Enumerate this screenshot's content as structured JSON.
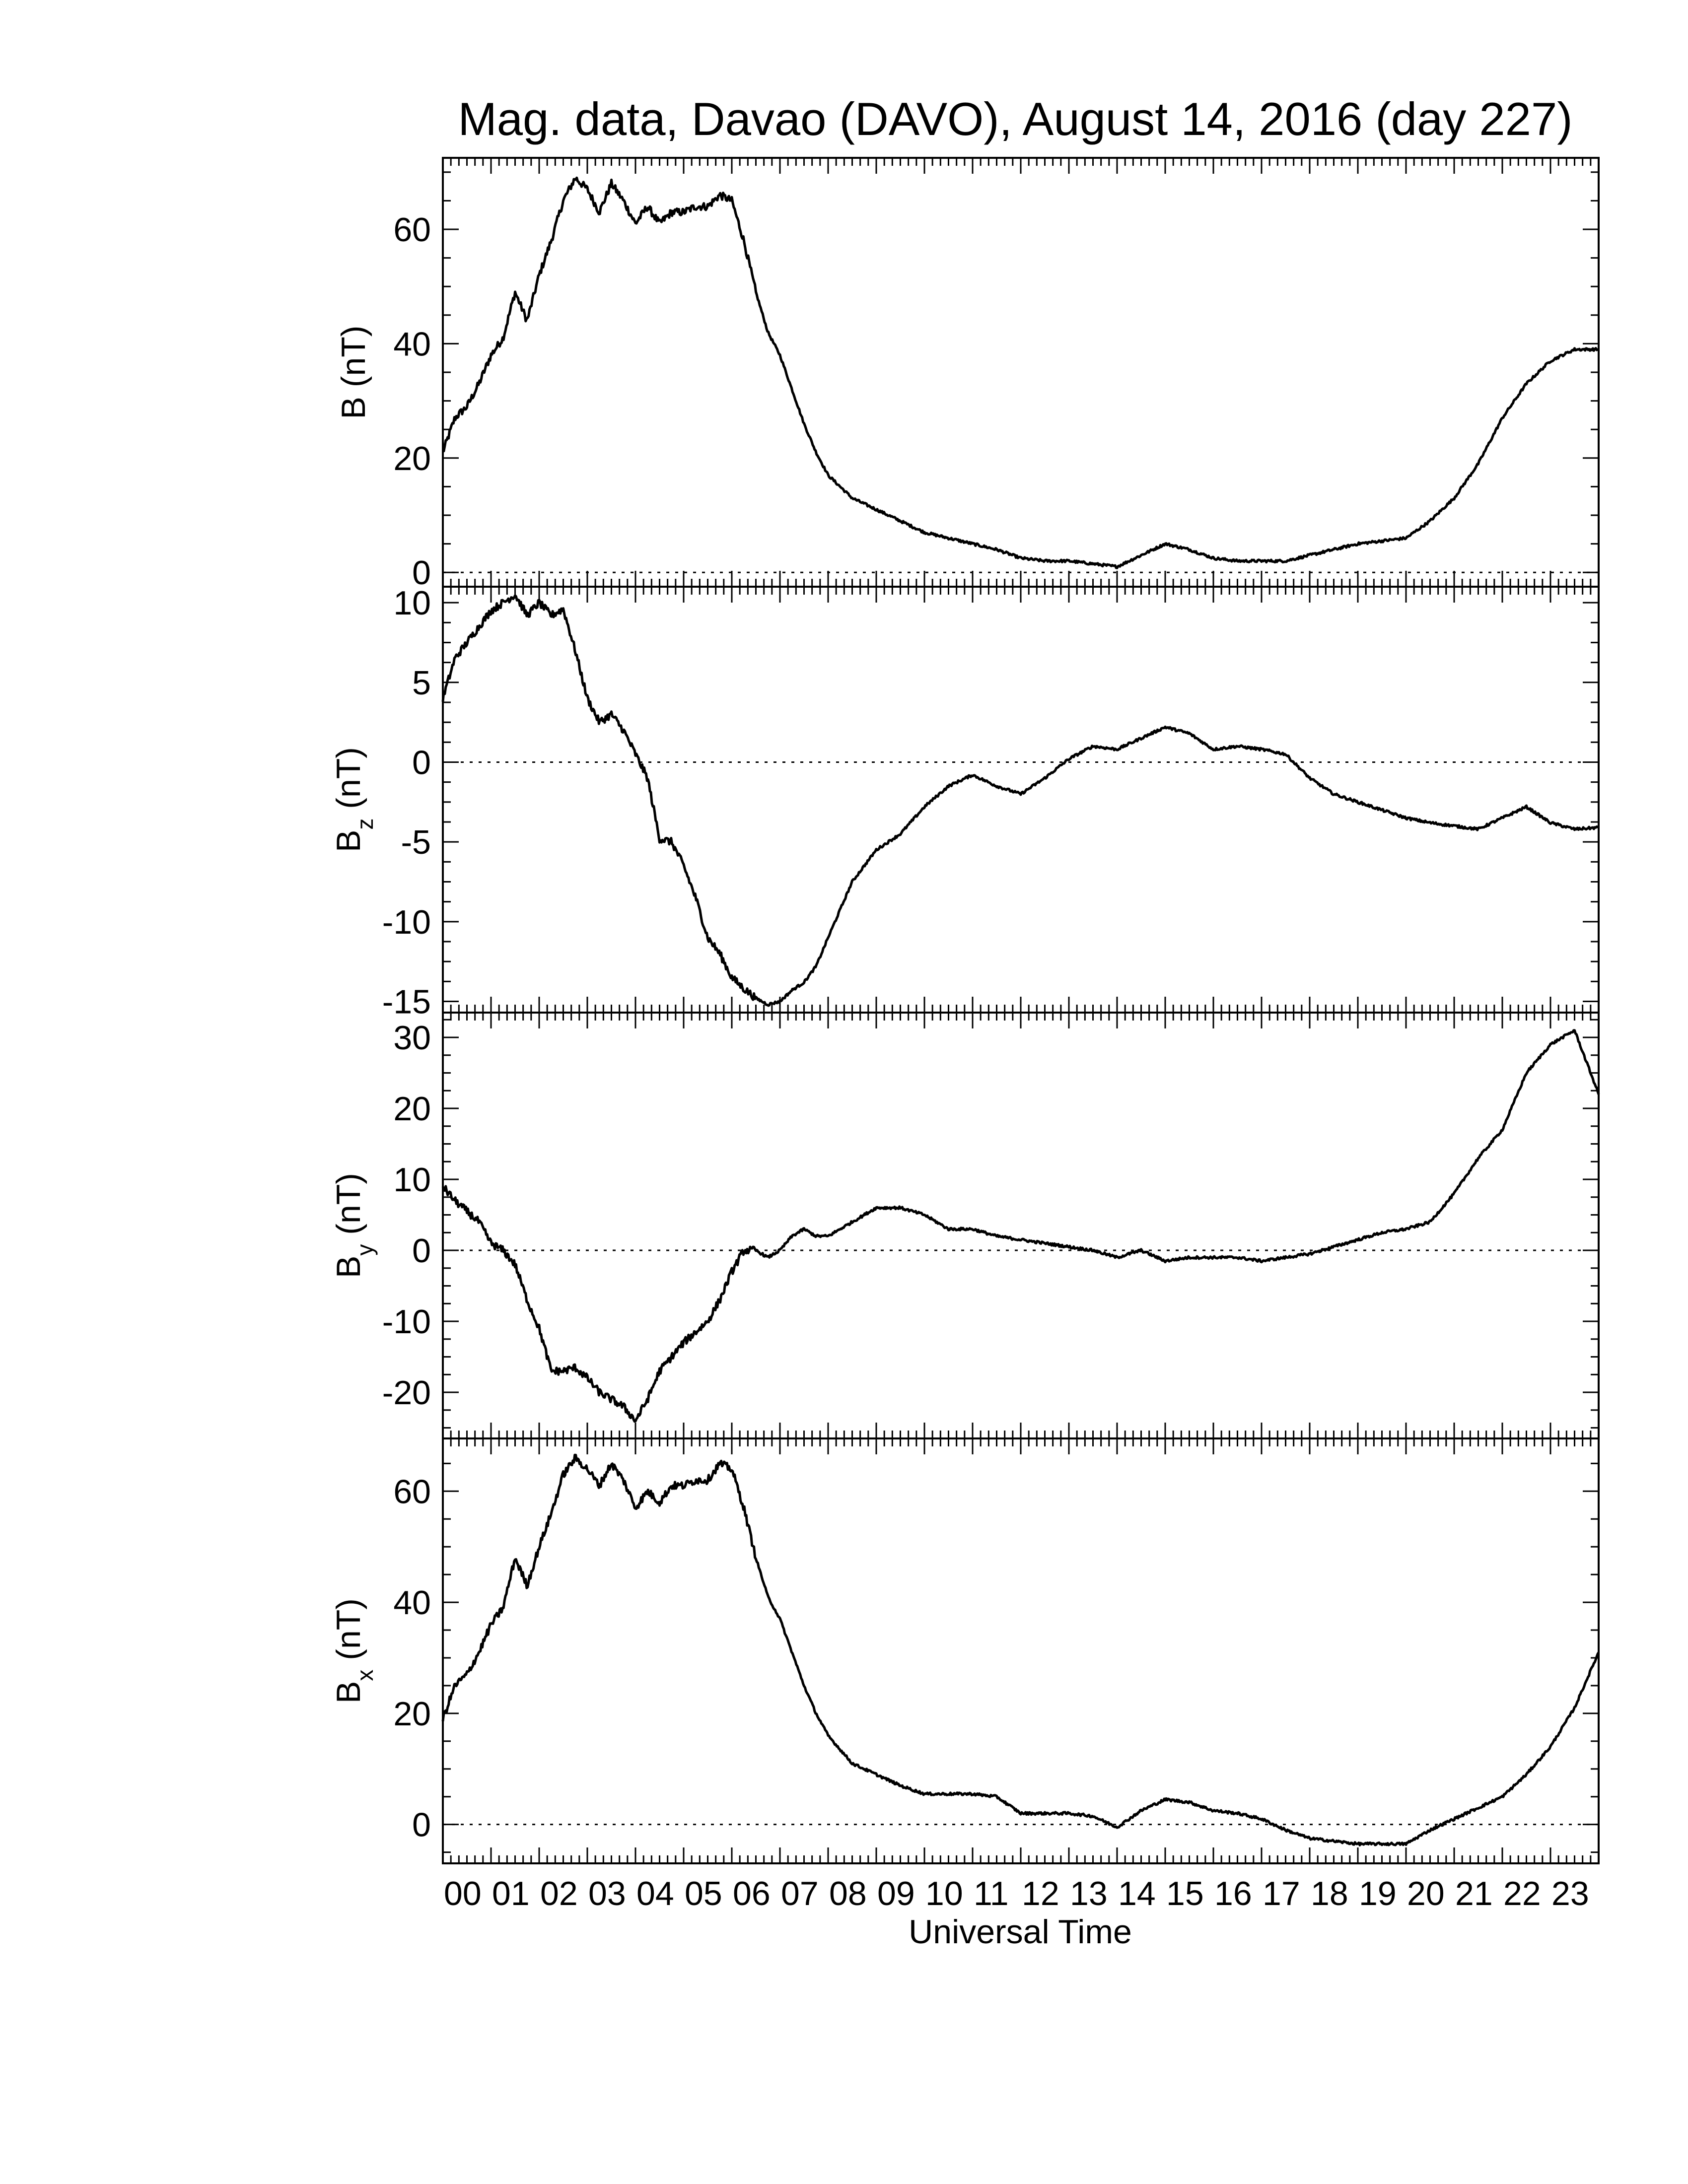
{
  "title": "Mag. data, Davao (DAVO), August 14, 2016 (day 227)",
  "xlabel": "Universal Time",
  "x_tick_labels": [
    "00",
    "01",
    "02",
    "03",
    "04",
    "05",
    "06",
    "07",
    "08",
    "09",
    "10",
    "11",
    "12",
    "13",
    "14",
    "15",
    "16",
    "17",
    "18",
    "19",
    "20",
    "21",
    "22",
    "23"
  ],
  "line_color": "#000000",
  "chart_data": [
    {
      "type": "line",
      "ylabel": {
        "main": "B",
        "sub": "",
        "unit": "(nT)"
      },
      "ylim": [
        -2.5,
        72.5
      ],
      "yticks": [
        0,
        20,
        40,
        60
      ],
      "zero_line": true,
      "x_hours": [
        0,
        0.25,
        0.5,
        0.75,
        1.0,
        1.25,
        1.5,
        1.75,
        2.0,
        2.25,
        2.5,
        2.75,
        3.0,
        3.25,
        3.5,
        3.75,
        4.0,
        4.25,
        4.5,
        4.75,
        5.0,
        5.25,
        5.5,
        5.75,
        6.0,
        6.25,
        6.5,
        6.75,
        7.0,
        7.25,
        7.5,
        7.75,
        8.0,
        8.5,
        9.0,
        9.5,
        10.0,
        10.5,
        11.0,
        11.5,
        12.0,
        12.5,
        13.0,
        13.5,
        14.0,
        14.5,
        15.0,
        15.5,
        16.0,
        16.5,
        17.0,
        17.5,
        18.0,
        18.5,
        19.0,
        19.5,
        20.0,
        20.5,
        21.0,
        21.5,
        22.0,
        22.5,
        23.0,
        23.5,
        24.0
      ],
      "values": [
        21,
        27,
        29,
        33,
        38,
        41,
        49,
        44,
        52,
        58,
        65,
        69,
        67,
        63,
        68,
        65,
        61,
        64,
        61,
        63,
        63,
        64,
        64,
        66,
        65,
        58,
        49,
        42,
        38,
        32,
        26,
        21,
        17,
        13,
        11,
        9,
        7,
        6,
        5,
        4,
        2.5,
        2,
        2,
        1.5,
        1,
        3,
        5,
        4,
        2.5,
        2,
        2,
        2,
        3,
        4,
        5,
        5.5,
        6,
        9,
        13,
        19,
        27,
        33,
        37,
        39,
        39
      ]
    },
    {
      "type": "line",
      "ylabel": {
        "main": "B",
        "sub": "z",
        "unit": "(nT)"
      },
      "ylim": [
        -15.7,
        11
      ],
      "yticks": [
        -15,
        -10,
        -5,
        0,
        5,
        10
      ],
      "zero_line": true,
      "x_hours": [
        0,
        0.25,
        0.5,
        0.75,
        1.0,
        1.25,
        1.5,
        1.75,
        2.0,
        2.25,
        2.5,
        2.75,
        3.0,
        3.25,
        3.5,
        3.75,
        4.0,
        4.25,
        4.5,
        4.75,
        5.0,
        5.25,
        5.5,
        5.75,
        6.0,
        6.25,
        6.5,
        6.75,
        7.0,
        7.25,
        7.5,
        7.75,
        8.0,
        8.5,
        9.0,
        9.5,
        10.0,
        10.5,
        11.0,
        11.5,
        12.0,
        12.5,
        13.0,
        13.5,
        14.0,
        14.5,
        15.0,
        15.5,
        16.0,
        16.5,
        17.0,
        17.5,
        18.0,
        18.5,
        19.0,
        19.5,
        20.0,
        20.5,
        21.0,
        21.5,
        22.0,
        22.5,
        23.0,
        23.5,
        24.0
      ],
      "values": [
        4,
        6.5,
        7.5,
        8.5,
        9.5,
        10,
        10.5,
        9.2,
        10,
        9.2,
        9.6,
        7,
        4,
        2.5,
        3,
        2,
        0.5,
        -1,
        -4.8,
        -5,
        -6.5,
        -8.5,
        -11,
        -12,
        -13.5,
        -14.2,
        -14.8,
        -15.2,
        -15,
        -14.3,
        -13.8,
        -12.8,
        -11,
        -7.5,
        -5.5,
        -4.5,
        -2.8,
        -1.5,
        -0.8,
        -1.5,
        -2,
        -1,
        0.2,
        1,
        0.8,
        1.5,
        2.2,
        1.8,
        0.8,
        1,
        0.8,
        0.5,
        -1,
        -2,
        -2.5,
        -3,
        -3.5,
        -3.8,
        -4,
        -4.2,
        -3.5,
        -2.8,
        -3.8,
        -4.2,
        -4.1
      ]
    },
    {
      "type": "line",
      "ylabel": {
        "main": "B",
        "sub": "y",
        "unit": "(nT)"
      },
      "ylim": [
        -26.5,
        33.5
      ],
      "yticks": [
        -20,
        -10,
        0,
        10,
        20,
        30
      ],
      "zero_line": true,
      "x_hours": [
        0,
        0.25,
        0.5,
        0.75,
        1.0,
        1.25,
        1.5,
        1.75,
        2.0,
        2.25,
        2.5,
        2.75,
        3.0,
        3.25,
        3.5,
        3.75,
        4.0,
        4.25,
        4.5,
        4.75,
        5.0,
        5.25,
        5.5,
        5.75,
        6.0,
        6.25,
        6.5,
        6.75,
        7.0,
        7.25,
        7.5,
        7.75,
        8.0,
        8.5,
        9.0,
        9.5,
        10.0,
        10.5,
        11.0,
        11.5,
        12.0,
        12.5,
        13.0,
        13.5,
        14.0,
        14.5,
        15.0,
        15.5,
        16.0,
        16.5,
        17.0,
        17.5,
        18.0,
        18.5,
        19.0,
        19.5,
        20.0,
        20.5,
        21.0,
        21.5,
        22.0,
        22.5,
        23.0,
        23.5,
        24.0
      ],
      "values": [
        9,
        7,
        5.5,
        4,
        1,
        0,
        -2,
        -7,
        -11,
        -17,
        -17,
        -16.5,
        -18,
        -20,
        -21,
        -22,
        -24,
        -21,
        -17,
        -15,
        -13,
        -11.5,
        -10,
        -7,
        -3,
        0,
        0,
        -1,
        0,
        2,
        3,
        2,
        2,
        4,
        6,
        6,
        5,
        3,
        3,
        2,
        1.5,
        1,
        0.5,
        0,
        -1,
        0,
        -1.5,
        -1,
        -1,
        -1,
        -1.5,
        -1,
        -0.5,
        0.5,
        1.5,
        2.5,
        3,
        4,
        8,
        13,
        17,
        25,
        29,
        31,
        22
      ]
    },
    {
      "type": "line",
      "ylabel": {
        "main": "B",
        "sub": "x",
        "unit": "(nT)"
      },
      "ylim": [
        -7,
        69.5
      ],
      "yticks": [
        0,
        20,
        40,
        60
      ],
      "zero_line": true,
      "x_hours": [
        0,
        0.25,
        0.5,
        0.75,
        1.0,
        1.25,
        1.5,
        1.75,
        2.0,
        2.25,
        2.5,
        2.75,
        3.0,
        3.25,
        3.5,
        3.75,
        4.0,
        4.25,
        4.5,
        4.75,
        5.0,
        5.25,
        5.5,
        5.75,
        6.0,
        6.25,
        6.5,
        6.75,
        7.0,
        7.25,
        7.5,
        7.75,
        8.0,
        8.5,
        9.0,
        9.5,
        10.0,
        10.5,
        11.0,
        11.5,
        12.0,
        12.5,
        13.0,
        13.5,
        14.0,
        14.5,
        15.0,
        15.5,
        16.0,
        16.5,
        17.0,
        17.5,
        18.0,
        18.5,
        19.0,
        19.5,
        20.0,
        20.5,
        21.0,
        21.5,
        22.0,
        22.5,
        23.0,
        23.5,
        24.0
      ],
      "values": [
        19,
        25,
        27,
        31,
        36,
        39,
        48,
        43,
        50,
        56,
        63,
        66,
        64,
        61,
        65,
        62,
        57,
        60,
        58,
        61,
        61,
        62,
        62,
        65,
        64,
        57,
        48,
        41,
        37,
        31,
        25,
        20,
        16,
        11,
        9,
        7,
        5.5,
        5.5,
        5.5,
        5,
        2,
        2,
        2,
        1.5,
        -0.5,
        2.5,
        4.5,
        4,
        2.5,
        2,
        1,
        -1,
        -2.5,
        -3,
        -3.5,
        -3.5,
        -3.5,
        -1,
        1,
        3,
        5,
        9,
        14,
        21,
        31
      ]
    }
  ]
}
